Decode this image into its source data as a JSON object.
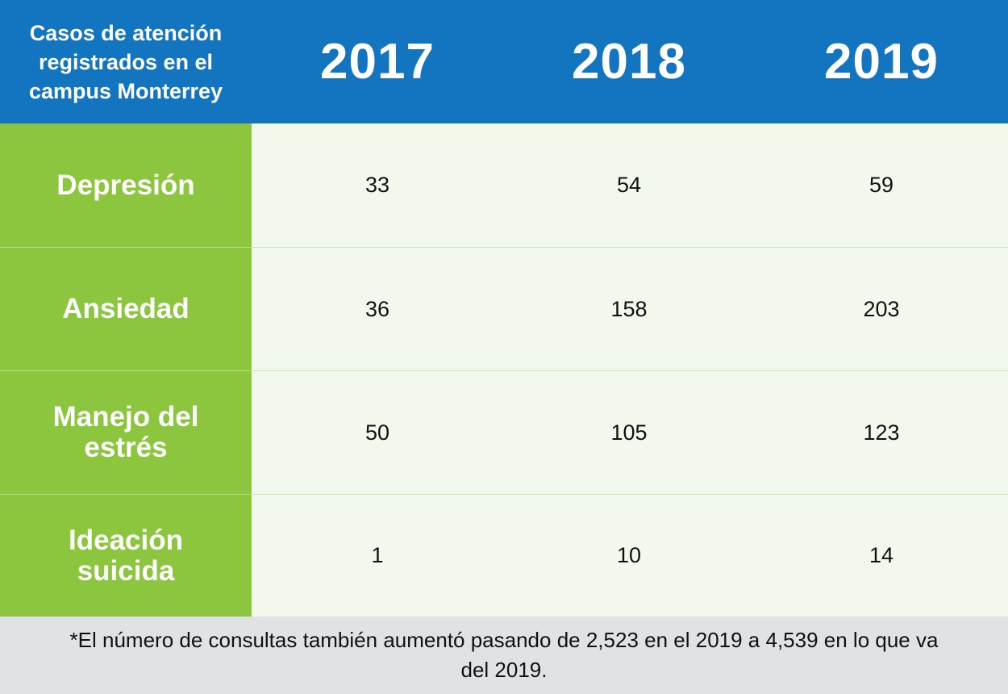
{
  "chart_data": {
    "type": "table",
    "corner_label": "Casos de atención registrados en el campus Monterrey",
    "columns": [
      "2017",
      "2018",
      "2019"
    ],
    "rows": [
      {
        "label": "Depresión",
        "values": [
          33,
          54,
          59
        ]
      },
      {
        "label": "Ansiedad",
        "values": [
          36,
          158,
          203
        ]
      },
      {
        "label": "Manejo del estrés",
        "values": [
          50,
          105,
          123
        ]
      },
      {
        "label": "Ideación suicida",
        "values": [
          1,
          10,
          14
        ]
      }
    ],
    "footnote": "*El número de consultas también aumentó pasando de 2,523 en el 2019 a 4,539 en lo que va del 2019."
  },
  "colors": {
    "header": "#1374c0",
    "row_label": "#8cc63f",
    "cell_background": "#f3f8ec",
    "footnote_background": "#e1e2e4"
  }
}
